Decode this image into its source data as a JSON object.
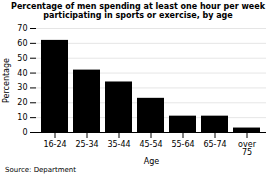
{
  "chart_data": {
    "type": "bar",
    "title": "Percentage of men spending at least one hour per week\nparticipating in sports or exercise, by age",
    "categories": [
      "16-24",
      "25-34",
      "35-44",
      "45-54",
      "55-64",
      "65-74",
      "over\n75"
    ],
    "values": [
      62,
      42,
      34,
      23,
      11,
      11,
      3
    ],
    "x_label": "Age",
    "y_label": "Percentage",
    "ylim": [
      0,
      70
    ],
    "yticks": [
      0,
      10,
      20,
      30,
      40,
      50,
      60,
      70
    ],
    "grid": true,
    "source": "Source: Department"
  }
}
